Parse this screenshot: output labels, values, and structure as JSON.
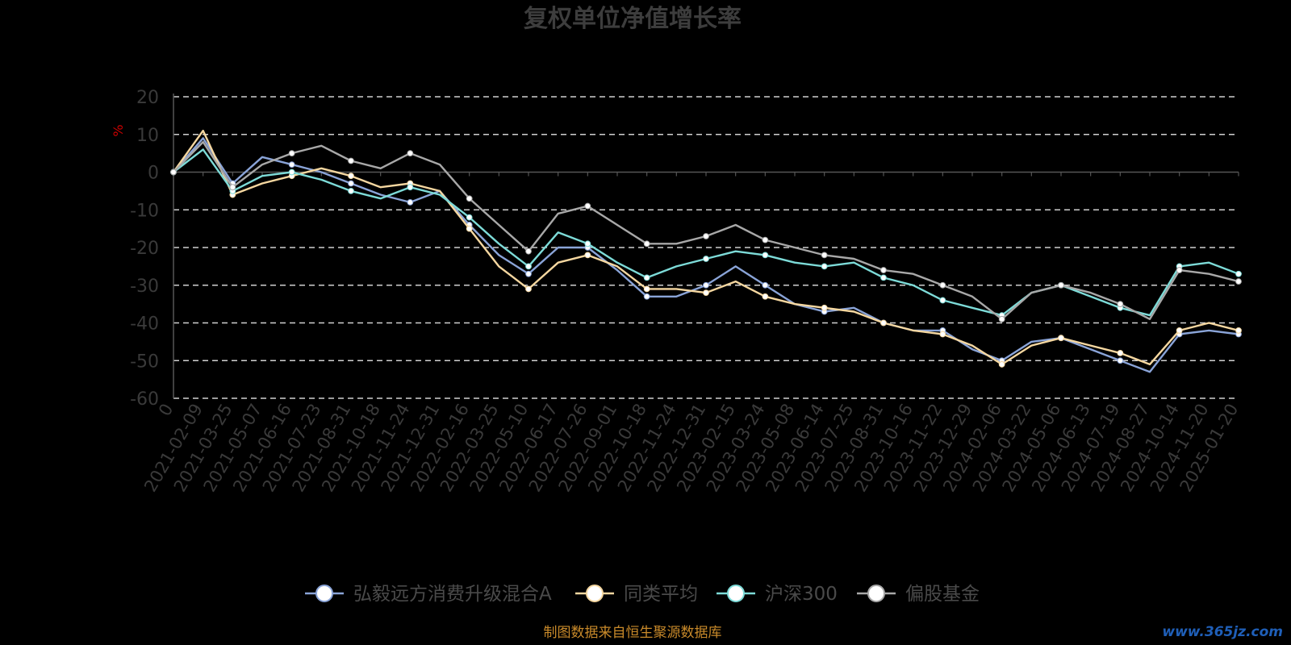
{
  "chart_data": {
    "type": "line",
    "title": "复权单位净值增长率",
    "ylabel": "%",
    "ylim": [
      -60,
      20
    ],
    "yticks": [
      20,
      10,
      0,
      -10,
      -20,
      -30,
      -40,
      -50,
      -60
    ],
    "grid": true,
    "legend_position": "bottom",
    "x_categories": [
      "0",
      "2021-02-09",
      "2021-03-25",
      "2021-05-07",
      "2021-06-16",
      "2021-07-23",
      "2021-08-31",
      "2021-10-18",
      "2021-11-24",
      "2021-12-31",
      "2022-02-16",
      "2022-03-25",
      "2022-05-10",
      "2022-06-17",
      "2022-07-26",
      "2022-09-01",
      "2022-10-18",
      "2022-11-24",
      "2022-12-31",
      "2023-02-15",
      "2023-03-24",
      "2023-05-08",
      "2023-06-14",
      "2023-07-25",
      "2023-08-31",
      "2023-10-16",
      "2023-11-22",
      "2023-12-29",
      "2024-02-06",
      "2024-03-22",
      "2024-05-06",
      "2024-06-13",
      "2024-07-19",
      "2024-08-27",
      "2024-10-14",
      "2024-11-20",
      "2025-01-20"
    ],
    "series": [
      {
        "name": "弘毅远方消费升级混合A",
        "color": "#8aa4d8",
        "values": [
          0,
          9,
          -3,
          4,
          2,
          0,
          -3,
          -6,
          -8,
          -5,
          -14,
          -22,
          -27,
          -20,
          -20,
          -26,
          -33,
          -33,
          -30,
          -25,
          -30,
          -35,
          -37,
          -36,
          -40,
          -42,
          -42,
          -47,
          -50,
          -45,
          -44,
          -47,
          -50,
          -53,
          -43,
          -42,
          -43
        ]
      },
      {
        "name": "同类平均",
        "color": "#f5d7a0",
        "values": [
          0,
          11,
          -6,
          -3,
          -1,
          1,
          -1,
          -4,
          -3,
          -5,
          -15,
          -25,
          -31,
          -24,
          -22,
          -25,
          -31,
          -31,
          -32,
          -29,
          -33,
          -35,
          -36,
          -37,
          -40,
          -42,
          -43,
          -46,
          -51,
          -46,
          -44,
          -46,
          -48,
          -51,
          -42,
          -40,
          -42
        ]
      },
      {
        "name": "沪深300",
        "color": "#7ddbd8",
        "values": [
          0,
          6,
          -5,
          -1,
          0,
          -2,
          -5,
          -7,
          -4,
          -6,
          -12,
          -19,
          -25,
          -16,
          -19,
          -24,
          -28,
          -25,
          -23,
          -21,
          -22,
          -24,
          -25,
          -24,
          -28,
          -30,
          -34,
          -36,
          -38,
          -32,
          -30,
          -33,
          -36,
          -38,
          -25,
          -24,
          -27
        ]
      },
      {
        "name": "偏股基金",
        "color": "#a8a8a8",
        "values": [
          0,
          8,
          -4,
          2,
          5,
          7,
          3,
          1,
          5,
          2,
          -7,
          -14,
          -21,
          -11,
          -9,
          -14,
          -19,
          -19,
          -17,
          -14,
          -18,
          -20,
          -22,
          -23,
          -26,
          -27,
          -30,
          -33,
          -39,
          -32,
          -30,
          -32,
          -35,
          -39,
          -26,
          -27,
          -29
        ]
      }
    ]
  },
  "source_note": "制图数据来自恒生聚源数据库",
  "watermark": "www.365jz.com"
}
